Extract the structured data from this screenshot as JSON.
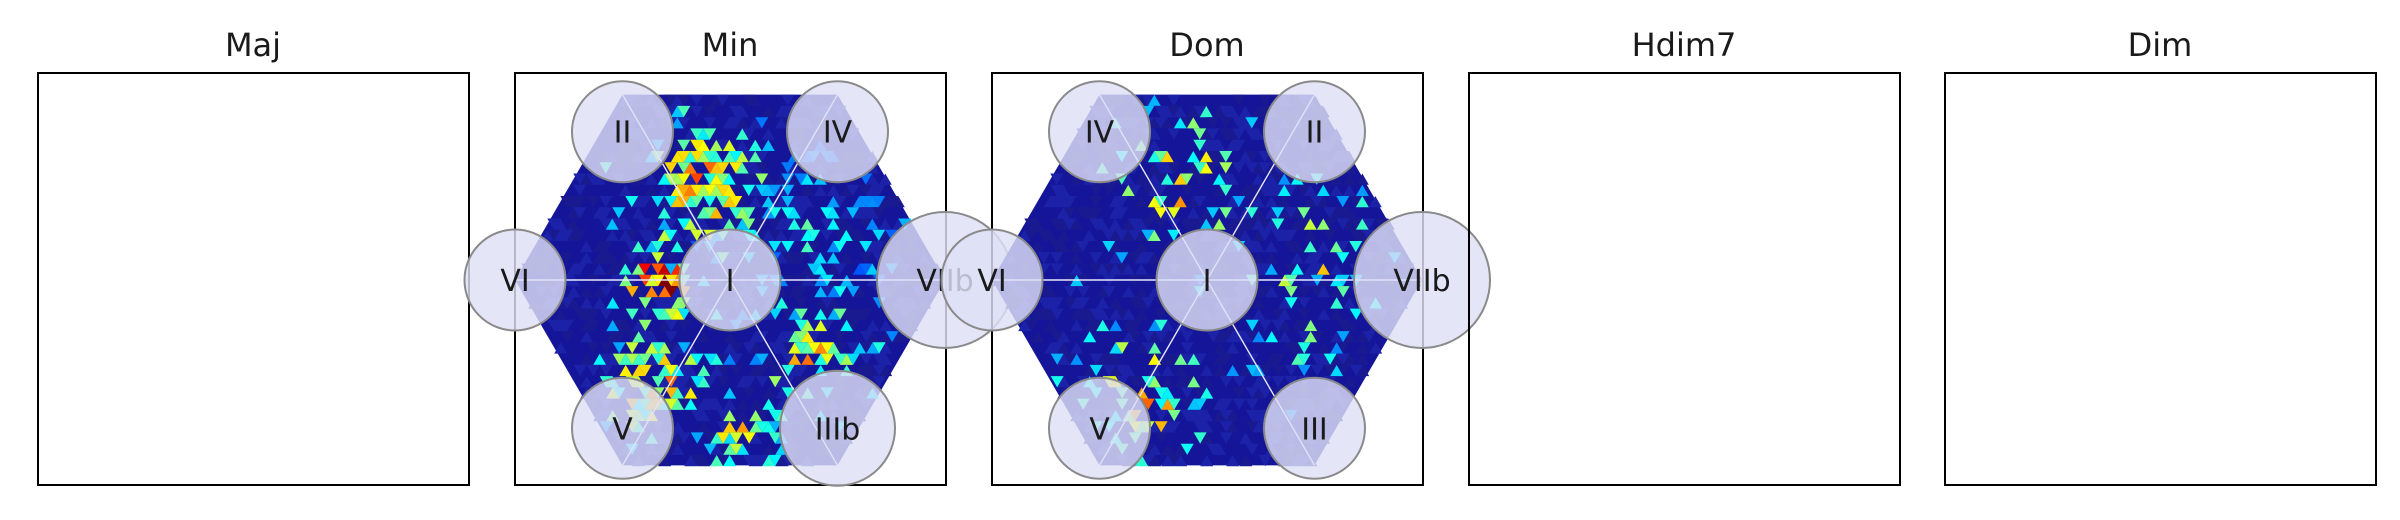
{
  "chart_data": [
    {
      "type": "heatmap",
      "title": "Maj",
      "nodes": [],
      "cells": []
    },
    {
      "type": "heatmap",
      "title": "Min",
      "nodes": [
        {
          "label": "I",
          "position": "center",
          "weight": 0.35
        },
        {
          "label": "II",
          "position": "top-left",
          "weight": 0.35
        },
        {
          "label": "IV",
          "position": "top-right",
          "weight": 0.35
        },
        {
          "label": "VIIb",
          "position": "right",
          "weight": 0.6
        },
        {
          "label": "IIIb",
          "position": "bottom-right",
          "weight": 0.45
        },
        {
          "label": "V",
          "position": "bottom-left",
          "weight": 0.35
        },
        {
          "label": "VI",
          "position": "left",
          "weight": 0.35
        }
      ],
      "hotspots": [
        {
          "u": -0.12,
          "v": -0.45,
          "spread": 0.17,
          "density": 0.85,
          "intensity": 0.62
        },
        {
          "u": -0.33,
          "v": 0.03,
          "spread": 0.09,
          "density": 0.9,
          "intensity": 0.92
        },
        {
          "u": -0.35,
          "v": 0.5,
          "spread": 0.16,
          "density": 0.8,
          "intensity": 0.58
        },
        {
          "u": 0.38,
          "v": 0.35,
          "spread": 0.14,
          "density": 0.75,
          "intensity": 0.55
        },
        {
          "u": 0.05,
          "v": 0.72,
          "spread": 0.12,
          "density": 0.6,
          "intensity": 0.5
        },
        {
          "u": 0.4,
          "v": -0.28,
          "spread": 0.22,
          "density": 0.45,
          "intensity": 0.3
        }
      ]
    },
    {
      "type": "heatmap",
      "title": "Dom",
      "nodes": [
        {
          "label": "I",
          "position": "center",
          "weight": 0.35
        },
        {
          "label": "IV",
          "position": "top-left",
          "weight": 0.35
        },
        {
          "label": "II",
          "position": "top-right",
          "weight": 0.35
        },
        {
          "label": "VIIb",
          "position": "right",
          "weight": 0.6
        },
        {
          "label": "III",
          "position": "bottom-right",
          "weight": 0.35
        },
        {
          "label": "V",
          "position": "bottom-left",
          "weight": 0.35
        },
        {
          "label": "VI",
          "position": "left",
          "weight": 0.35
        }
      ],
      "hotspots": [
        {
          "u": -0.15,
          "v": -0.45,
          "spread": 0.2,
          "density": 0.28,
          "intensity": 0.55
        },
        {
          "u": 0.48,
          "v": -0.12,
          "spread": 0.18,
          "density": 0.3,
          "intensity": 0.5
        },
        {
          "u": 0.45,
          "v": 0.25,
          "spread": 0.15,
          "density": 0.25,
          "intensity": 0.4
        },
        {
          "u": -0.3,
          "v": 0.55,
          "spread": 0.2,
          "density": 0.3,
          "intensity": 0.55
        }
      ]
    },
    {
      "type": "heatmap",
      "title": "Hdim7",
      "nodes": [],
      "cells": []
    },
    {
      "type": "heatmap",
      "title": "Dim",
      "nodes": [],
      "cells": []
    }
  ]
}
